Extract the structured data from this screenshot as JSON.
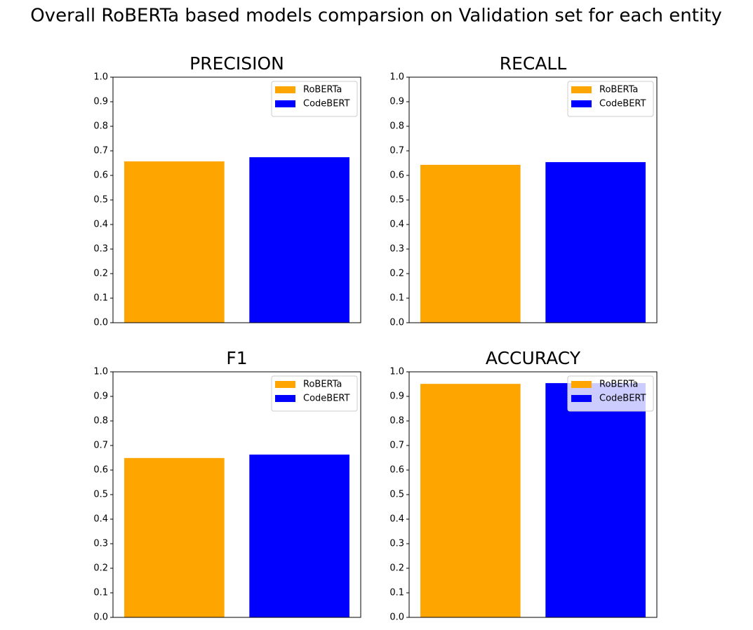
{
  "title": "Overall RoBERTa based models comparsion on Validation set for each entity",
  "chart_data": [
    {
      "type": "bar",
      "title": "PRECISION",
      "categories": [
        null
      ],
      "series": [
        {
          "name": "RoBERTa",
          "color": "#ffa500",
          "values": [
            0.657
          ]
        },
        {
          "name": "CodeBERT",
          "color": "#0000ff",
          "values": [
            0.674
          ]
        }
      ],
      "ylim": [
        0,
        1
      ],
      "yticks": [
        {
          "value": 0,
          "label": "0.0"
        },
        0.1,
        0.2,
        0.3,
        0.4,
        0.5,
        0.6,
        0.7,
        0.8,
        0.9,
        {
          "value": 1,
          "label": "1.0"
        }
      ],
      "legend": "upper right"
    },
    {
      "type": "bar",
      "title": "RECALL",
      "categories": [
        null
      ],
      "series": [
        {
          "name": "RoBERTa",
          "color": "#ffa500",
          "values": [
            0.643
          ]
        },
        {
          "name": "CodeBERT",
          "color": "#0000ff",
          "values": [
            0.654
          ]
        }
      ],
      "ylim": [
        0,
        1
      ],
      "yticks": [
        {
          "value": 0,
          "label": "0.0"
        },
        0.1,
        0.2,
        0.3,
        0.4,
        0.5,
        0.6,
        0.7,
        0.8,
        0.9,
        {
          "value": 1,
          "label": "1.0"
        }
      ],
      "legend": "upper right"
    },
    {
      "type": "bar",
      "title": "F1",
      "categories": [
        null
      ],
      "series": [
        {
          "name": "RoBERTa",
          "color": "#ffa500",
          "values": [
            0.649
          ]
        },
        {
          "name": "CodeBERT",
          "color": "#0000ff",
          "values": [
            0.663
          ]
        }
      ],
      "ylim": [
        0,
        1
      ],
      "yticks": [
        {
          "value": 0,
          "label": "0.0"
        },
        0.1,
        0.2,
        0.3,
        0.4,
        0.5,
        0.6,
        0.7,
        0.8,
        0.9,
        {
          "value": 1,
          "label": "1.0"
        }
      ],
      "legend": "upper right"
    },
    {
      "type": "bar",
      "title": "ACCURACY",
      "categories": [
        null
      ],
      "series": [
        {
          "name": "RoBERTa",
          "color": "#ffa500",
          "values": [
            0.951
          ]
        },
        {
          "name": "CodeBERT",
          "color": "#0000ff",
          "values": [
            0.954
          ]
        }
      ],
      "ylim": [
        0,
        1
      ],
      "yticks": [
        {
          "value": 0,
          "label": "0.0"
        },
        0.1,
        0.2,
        0.3,
        0.4,
        0.5,
        0.6,
        0.7,
        0.8,
        0.9,
        {
          "value": 1,
          "label": "1.0"
        }
      ],
      "legend": "upper right"
    }
  ]
}
